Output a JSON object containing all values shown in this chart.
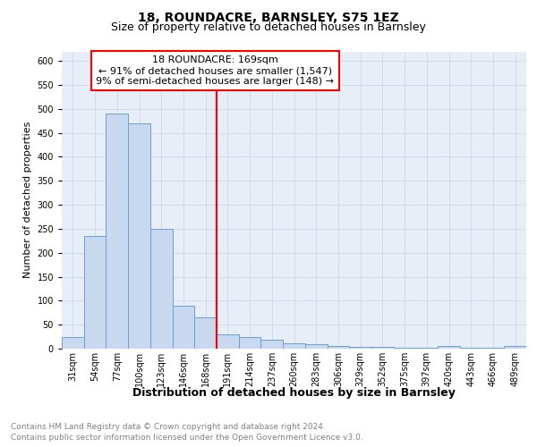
{
  "title1": "18, ROUNDACRE, BARNSLEY, S75 1EZ",
  "title2": "Size of property relative to detached houses in Barnsley",
  "xlabel": "Distribution of detached houses by size in Barnsley",
  "ylabel": "Number of detached properties",
  "annotation_line1": "18 ROUNDACRE: 169sqm",
  "annotation_line2": "← 91% of detached houses are smaller (1,547)",
  "annotation_line3": "9% of semi-detached houses are larger (148) →",
  "categories": [
    "31sqm",
    "54sqm",
    "77sqm",
    "100sqm",
    "123sqm",
    "146sqm",
    "168sqm",
    "191sqm",
    "214sqm",
    "237sqm",
    "260sqm",
    "283sqm",
    "306sqm",
    "329sqm",
    "352sqm",
    "375sqm",
    "397sqm",
    "420sqm",
    "443sqm",
    "466sqm",
    "489sqm"
  ],
  "values": [
    25,
    235,
    490,
    470,
    250,
    90,
    65,
    30,
    25,
    18,
    12,
    10,
    5,
    4,
    3,
    2,
    2,
    5,
    2,
    2,
    5
  ],
  "bar_color": "#c8d8ee",
  "bar_edgecolor": "#6a9fd8",
  "annotation_box_color": "white",
  "annotation_box_edgecolor": "red",
  "marker_color": "red",
  "grid_color": "#c8d4e8",
  "background_color": "#e8eef8",
  "footer1": "Contains HM Land Registry data © Crown copyright and database right 2024.",
  "footer2": "Contains public sector information licensed under the Open Government Licence v3.0.",
  "ylim": [
    0,
    620
  ],
  "yticks": [
    0,
    50,
    100,
    150,
    200,
    250,
    300,
    350,
    400,
    450,
    500,
    550,
    600
  ],
  "title1_fontsize": 10,
  "title2_fontsize": 9,
  "ylabel_fontsize": 8,
  "xlabel_fontsize": 9,
  "tick_fontsize": 7,
  "footer_fontsize": 6.5,
  "annotation_fontsize": 8
}
